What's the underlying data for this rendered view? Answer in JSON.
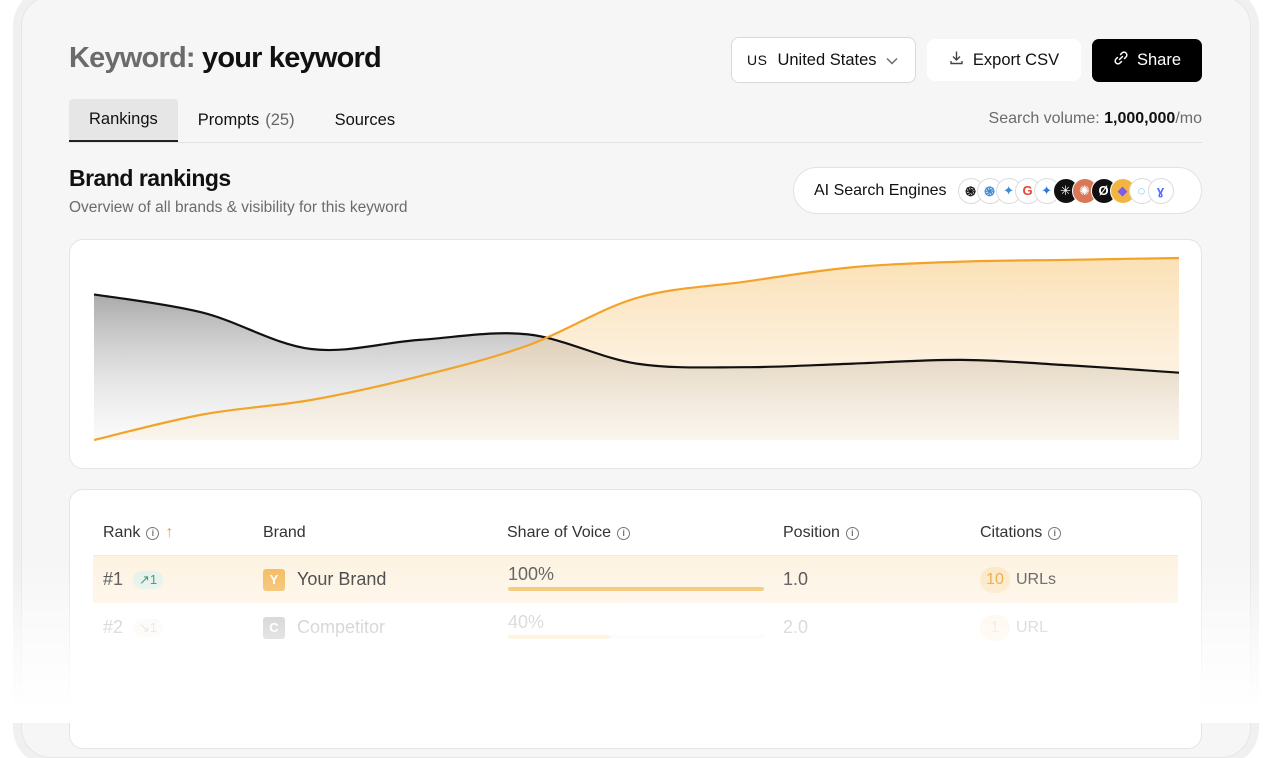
{
  "header": {
    "keyword_label": "Keyword:",
    "keyword_value": "your keyword",
    "country_code": "US",
    "country_name": "United States",
    "export_label": "Export CSV",
    "share_label": "Share"
  },
  "tabs": [
    {
      "label": "Rankings",
      "count": ""
    },
    {
      "label": "Prompts",
      "count": "(25)"
    },
    {
      "label": "Sources",
      "count": ""
    }
  ],
  "search_volume": {
    "label": "Search volume:",
    "value": "1,000,000",
    "unit": "/mo"
  },
  "section": {
    "title": "Brand rankings",
    "subtitle": "Overview of all brands & visibility for this keyword"
  },
  "engines": {
    "label": "AI Search Engines",
    "icons": [
      {
        "name": "chatgpt-icon",
        "glyph": "֍",
        "bg": "#ffffff",
        "fg": "#111111"
      },
      {
        "name": "openai-icon",
        "glyph": "֍",
        "bg": "#ffffff",
        "fg": "#3a8ad8"
      },
      {
        "name": "gemini-icon",
        "glyph": "✦",
        "bg": "#ffffff",
        "fg": "#3a8ad8"
      },
      {
        "name": "google-icon",
        "glyph": "G",
        "bg": "#ffffff",
        "fg": "#ea4335"
      },
      {
        "name": "gemini-alt-icon",
        "glyph": "✦",
        "bg": "#ffffff",
        "fg": "#2f7be6"
      },
      {
        "name": "perplexity-icon",
        "glyph": "✳",
        "bg": "#111111",
        "fg": "#ffffff"
      },
      {
        "name": "claude-icon",
        "glyph": "✺",
        "bg": "#d97757",
        "fg": "#ffffff"
      },
      {
        "name": "grok-icon",
        "glyph": "Ø",
        "bg": "#111111",
        "fg": "#ffffff"
      },
      {
        "name": "copilot-icon",
        "glyph": "◆",
        "bg": "#f2b640",
        "fg": "#7a5cf0"
      },
      {
        "name": "meta-ai-icon",
        "glyph": "◌",
        "bg": "#ffffff",
        "fg": "#2f9be6"
      },
      {
        "name": "deepseek-icon",
        "glyph": "ɣ",
        "bg": "#ffffff",
        "fg": "#4d6bfe"
      }
    ]
  },
  "colors": {
    "accent": "#f2a42a",
    "competitor": "#111111"
  },
  "chart_data": {
    "type": "area",
    "x": [
      0,
      1,
      2,
      3,
      4,
      5,
      6,
      7,
      8,
      9,
      10
    ],
    "series": [
      {
        "values": [
          0,
          14,
          22,
          35,
          52,
          78,
          87,
          95,
          98,
          99,
          100
        ]
      },
      {
        "values": [
          80,
          70,
          50,
          55,
          58,
          42,
          40,
          42,
          44,
          41,
          37
        ]
      }
    ],
    "ylim": [
      0,
      100
    ],
    "grid": false
  },
  "table": {
    "columns": {
      "rank": "Rank",
      "brand": "Brand",
      "sov": "Share of Voice",
      "position": "Position",
      "citations": "Citations"
    },
    "rows": [
      {
        "rank": "#1",
        "trend": "↗1",
        "trend_dir": "up",
        "brand_initial": "Y",
        "brand_color": "#f4b95a",
        "brand": "Your Brand",
        "sov": "100%",
        "sov_value": 100,
        "position": "1.0",
        "citations": "10",
        "citation_unit": "URLs"
      },
      {
        "rank": "#2",
        "trend": "↘1",
        "trend_dir": "down",
        "brand_initial": "C",
        "brand_color": "#555555",
        "brand": "Competitor",
        "sov": "40%",
        "sov_value": 40,
        "position": "2.0",
        "citations": "1",
        "citation_unit": "URL"
      }
    ]
  }
}
